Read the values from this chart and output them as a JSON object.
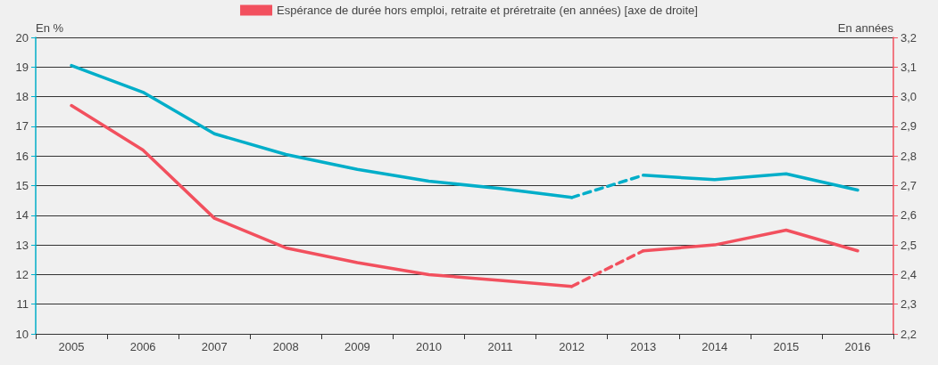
{
  "chart_data": {
    "type": "line",
    "categories": [
      "2005",
      "2006",
      "2007",
      "2008",
      "2009",
      "2010",
      "2011",
      "2012",
      "2013",
      "2014",
      "2015",
      "2016"
    ],
    "ylabel": "En %",
    "y2label": "En années",
    "ylim": [
      10,
      20
    ],
    "yticks": [
      10,
      11,
      12,
      13,
      14,
      15,
      16,
      17,
      18,
      19,
      20
    ],
    "y2lim": [
      2.2,
      3.2
    ],
    "y2ticks": [
      {
        "value": 2.2,
        "label": "2,2"
      },
      {
        "value": 2.3,
        "label": "2,3"
      },
      {
        "value": 2.4,
        "label": "2,4"
      },
      {
        "value": 2.5,
        "label": "2,5"
      },
      {
        "value": 2.6,
        "label": "2,6"
      },
      {
        "value": 2.7,
        "label": "2,7"
      },
      {
        "value": 2.8,
        "label": "2,8"
      },
      {
        "value": 2.9,
        "label": "2,9"
      },
      {
        "value": 3.0,
        "label": "3,0"
      },
      {
        "value": 3.1,
        "label": "3,1"
      },
      {
        "value": 3.2,
        "label": "3,2"
      }
    ],
    "grid": "y",
    "legend": "top",
    "marker": "none",
    "series": [
      {
        "color": "#00aec9",
        "line_style": "solid",
        "values": [
          19.05,
          18.15,
          16.75,
          16.05,
          15.55,
          15.15,
          14.9,
          14.6,
          null,
          null,
          null,
          null
        ]
      },
      {
        "color": "#00aec9",
        "line_style": "dashed",
        "values": [
          null,
          null,
          null,
          null,
          null,
          null,
          null,
          14.6,
          15.35,
          null,
          null,
          null
        ]
      },
      {
        "color": "#00aec9",
        "line_style": "solid",
        "values": [
          null,
          null,
          null,
          null,
          null,
          null,
          null,
          null,
          15.35,
          15.2,
          15.4,
          14.85
        ]
      },
      {
        "name": "Espérance de durée hors emploi, retraite et préretraite (en années) [axe de droite]",
        "color": "#f2505e",
        "axis": "y2",
        "line_style": "solid",
        "values": [
          2.97,
          2.82,
          2.59,
          2.49,
          2.44,
          2.4,
          2.38,
          2.36,
          null,
          null,
          null,
          null
        ]
      },
      {
        "color": "#f2505e",
        "axis": "y2",
        "line_style": "dashed",
        "values": [
          null,
          null,
          null,
          null,
          null,
          null,
          null,
          2.36,
          2.48,
          null,
          null,
          null
        ]
      },
      {
        "color": "#f2505e",
        "axis": "y2",
        "line_style": "solid",
        "values": [
          null,
          null,
          null,
          null,
          null,
          null,
          null,
          null,
          2.48,
          2.5,
          2.55,
          2.48
        ]
      }
    ]
  }
}
